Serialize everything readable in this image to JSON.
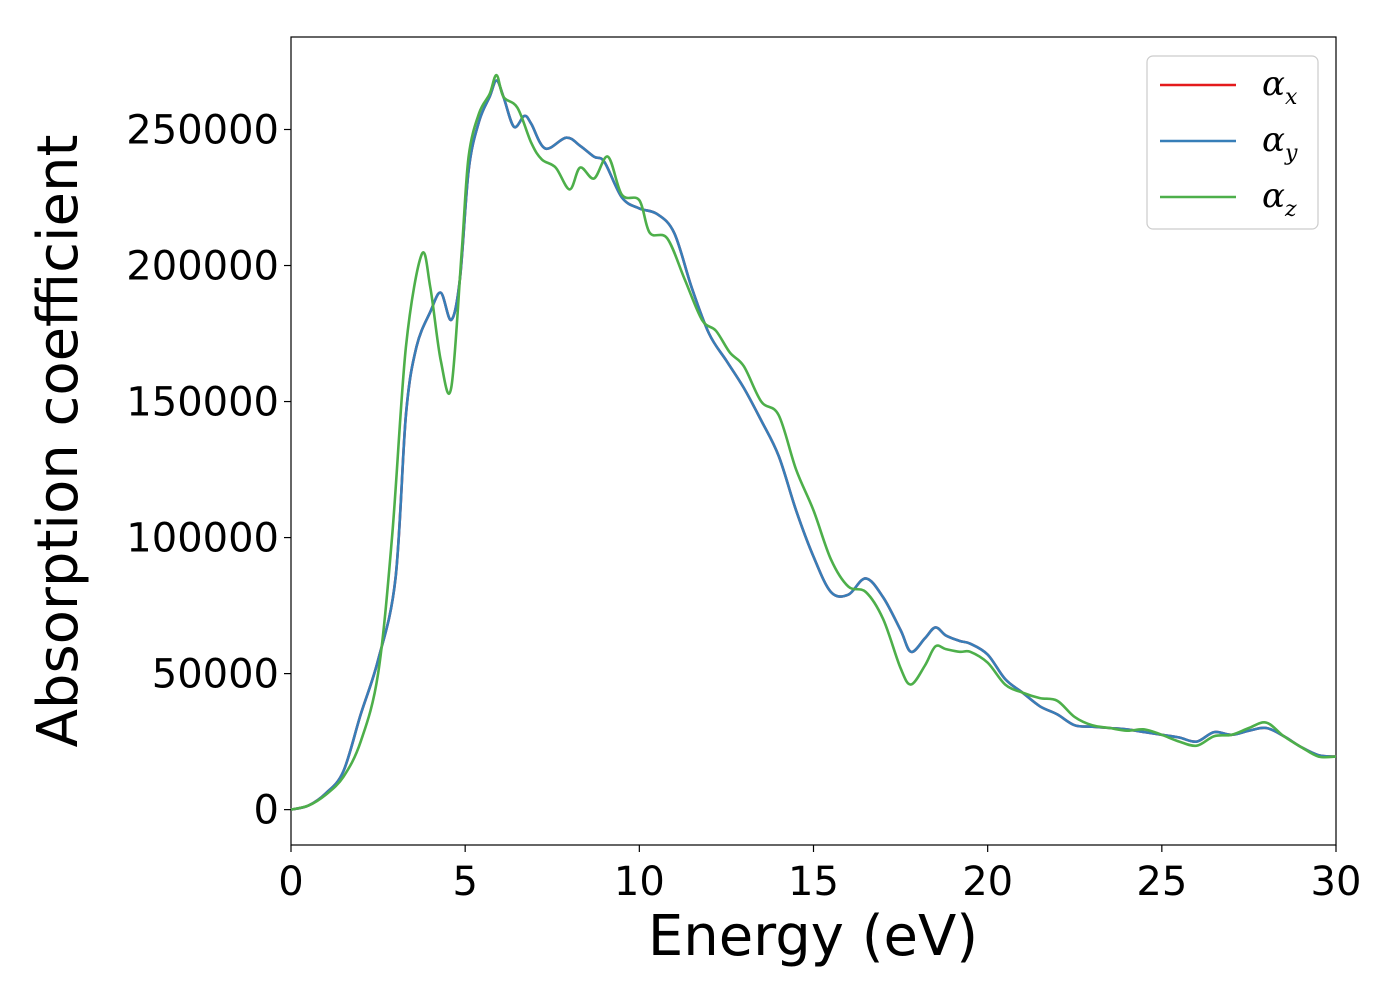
{
  "chart_data": {
    "type": "line",
    "title": "",
    "xlabel": "Energy (eV)",
    "ylabel": "Absorption coefficient",
    "xlim": [
      0,
      30
    ],
    "ylim": [
      -13000,
      284000
    ],
    "x_ticks": [
      0,
      5,
      10,
      15,
      20,
      25,
      30
    ],
    "y_ticks": [
      0,
      50000,
      100000,
      150000,
      200000,
      250000
    ],
    "grid": false,
    "legend_position": "top-right",
    "series": [
      {
        "name": "α_x",
        "legend_symbol": "α",
        "legend_sub": "x",
        "color": "#e41a1c",
        "x": [
          0,
          0.5,
          1,
          1.5,
          2,
          2.5,
          3,
          3.3,
          3.6,
          4,
          4.3,
          4.6,
          4.85,
          5.1,
          5.4,
          5.7,
          5.9,
          6.1,
          6.4,
          6.7,
          6.9,
          7.3,
          7.9,
          8.3,
          8.7,
          9,
          9.5,
          10,
          10.5,
          11,
          11.5,
          12,
          12.5,
          13,
          13.5,
          14,
          14.5,
          15,
          15.5,
          16,
          16.5,
          17,
          17.5,
          17.8,
          18.2,
          18.5,
          18.8,
          19.2,
          19.5,
          20,
          20.5,
          21,
          21.5,
          22,
          22.5,
          23,
          23.5,
          24,
          24.5,
          25,
          25.5,
          26,
          26.5,
          27,
          27.5,
          28,
          28.5,
          29,
          29.5,
          30
        ],
        "y": [
          0,
          1500,
          6000,
          14000,
          35000,
          55000,
          85000,
          145000,
          170000,
          183000,
          190000,
          180000,
          195000,
          235000,
          253000,
          262000,
          268000,
          262000,
          251000,
          255000,
          252000,
          243000,
          247000,
          244000,
          240000,
          238000,
          225000,
          221000,
          219000,
          212000,
          192000,
          175000,
          165000,
          155000,
          143000,
          130000,
          110000,
          93000,
          80000,
          79000,
          85000,
          78000,
          66000,
          58000,
          63000,
          67000,
          64000,
          62000,
          61000,
          57000,
          48000,
          43000,
          38000,
          35000,
          31000,
          30500,
          30000,
          29500,
          28500,
          27500,
          26500,
          25000,
          28500,
          27500,
          29000,
          30000,
          27000,
          23000,
          20000,
          19500
        ]
      },
      {
        "name": "α_y",
        "legend_symbol": "α",
        "legend_sub": "y",
        "color": "#377eb8",
        "x": [
          0,
          0.5,
          1,
          1.5,
          2,
          2.5,
          3,
          3.3,
          3.6,
          4,
          4.3,
          4.6,
          4.85,
          5.1,
          5.4,
          5.7,
          5.9,
          6.1,
          6.4,
          6.7,
          6.9,
          7.3,
          7.9,
          8.3,
          8.7,
          9,
          9.5,
          10,
          10.5,
          11,
          11.5,
          12,
          12.5,
          13,
          13.5,
          14,
          14.5,
          15,
          15.5,
          16,
          16.5,
          17,
          17.5,
          17.8,
          18.2,
          18.5,
          18.8,
          19.2,
          19.5,
          20,
          20.5,
          21,
          21.5,
          22,
          22.5,
          23,
          23.5,
          24,
          24.5,
          25,
          25.5,
          26,
          26.5,
          27,
          27.5,
          28,
          28.5,
          29,
          29.5,
          30
        ],
        "y": [
          0,
          1500,
          6000,
          14000,
          35000,
          55000,
          85000,
          145000,
          170000,
          183000,
          190000,
          180000,
          195000,
          235000,
          253000,
          262000,
          268000,
          262000,
          251000,
          255000,
          252000,
          243000,
          247000,
          244000,
          240000,
          238000,
          225000,
          221000,
          219000,
          212000,
          192000,
          175000,
          165000,
          155000,
          143000,
          130000,
          110000,
          93000,
          80000,
          79000,
          85000,
          78000,
          66000,
          58000,
          63000,
          67000,
          64000,
          62000,
          61000,
          57000,
          48000,
          43000,
          38000,
          35000,
          31000,
          30500,
          30000,
          29500,
          28500,
          27500,
          26500,
          25000,
          28500,
          27500,
          29000,
          30000,
          27000,
          23000,
          20000,
          19500
        ]
      },
      {
        "name": "α_z",
        "legend_symbol": "α",
        "legend_sub": "z",
        "color": "#4daf4a",
        "x": [
          0,
          0.5,
          1,
          1.5,
          2,
          2.5,
          2.9,
          3.3,
          3.75,
          4,
          4.3,
          4.6,
          4.9,
          5.1,
          5.4,
          5.7,
          5.9,
          6.1,
          6.5,
          6.9,
          7.2,
          7.6,
          8,
          8.3,
          8.7,
          9.1,
          9.5,
          10,
          10.3,
          10.8,
          11.3,
          11.8,
          12.2,
          12.6,
          13,
          13.5,
          14,
          14.5,
          15,
          15.5,
          16,
          16.5,
          17,
          17.5,
          17.8,
          18.2,
          18.5,
          18.8,
          19.2,
          19.5,
          20,
          20.5,
          21,
          21.5,
          22,
          22.5,
          23,
          23.5,
          24,
          24.5,
          25,
          25.5,
          26,
          26.5,
          27,
          27.5,
          28,
          28.5,
          29,
          29.5,
          30
        ],
        "y": [
          0,
          1500,
          5500,
          12000,
          25000,
          50000,
          100000,
          170000,
          204000,
          192000,
          165000,
          155000,
          205000,
          240000,
          256000,
          263000,
          270000,
          262000,
          258000,
          245000,
          239000,
          236000,
          228000,
          236000,
          232000,
          240000,
          226000,
          224000,
          212000,
          210000,
          195000,
          180000,
          176000,
          168000,
          163000,
          150000,
          145000,
          125000,
          110000,
          92000,
          82000,
          80000,
          70000,
          52000,
          46000,
          53000,
          60000,
          59000,
          58000,
          58000,
          54000,
          46000,
          43000,
          41000,
          40000,
          34000,
          31000,
          30000,
          29000,
          29500,
          27500,
          25000,
          23500,
          27000,
          27500,
          30000,
          32000,
          27000,
          23000,
          19500,
          19500
        ]
      }
    ]
  }
}
